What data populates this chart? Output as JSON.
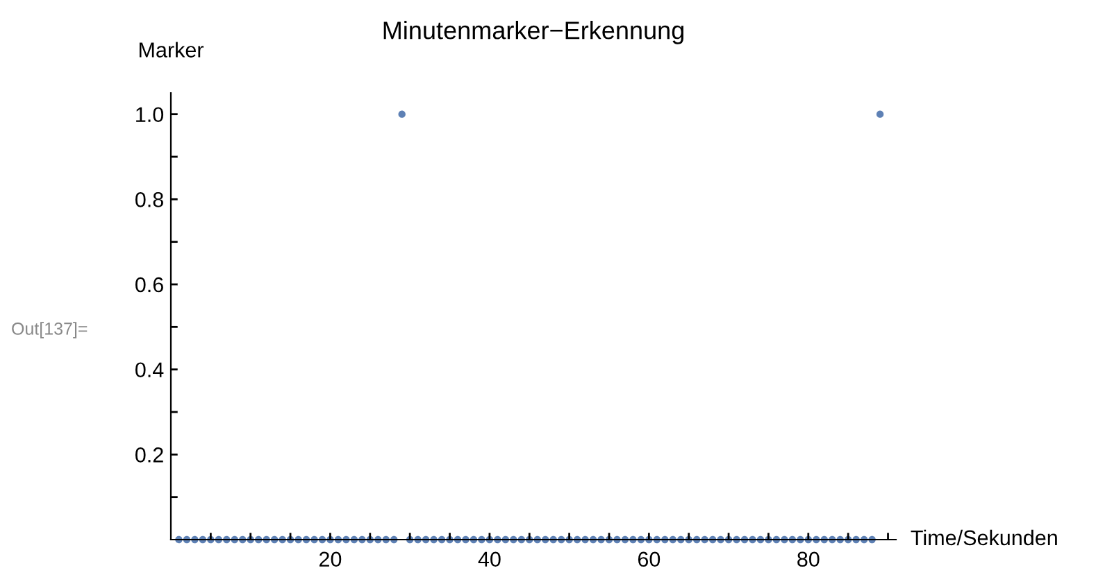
{
  "chart_data": {
    "type": "scatter",
    "title": "Minutenmarker−Erkennung",
    "xlabel": "Time/Sekunden",
    "ylabel": "Marker",
    "annotations": [
      "Out[137]="
    ],
    "x": [
      1,
      2,
      3,
      4,
      5,
      6,
      7,
      8,
      9,
      10,
      11,
      12,
      13,
      14,
      15,
      16,
      17,
      18,
      19,
      20,
      21,
      22,
      23,
      24,
      25,
      26,
      27,
      28,
      29,
      30,
      31,
      32,
      33,
      34,
      35,
      36,
      37,
      38,
      39,
      40,
      41,
      42,
      43,
      44,
      45,
      46,
      47,
      48,
      49,
      50,
      51,
      52,
      53,
      54,
      55,
      56,
      57,
      58,
      59,
      60,
      61,
      62,
      63,
      64,
      65,
      66,
      67,
      68,
      69,
      70,
      71,
      72,
      73,
      74,
      75,
      76,
      77,
      78,
      79,
      80,
      81,
      82,
      83,
      84,
      85,
      86,
      87,
      88,
      89
    ],
    "series": [
      {
        "color": "#5e81b5",
        "values": [
          0,
          0,
          0,
          0,
          0,
          0,
          0,
          0,
          0,
          0,
          0,
          0,
          0,
          0,
          0,
          0,
          0,
          0,
          0,
          0,
          0,
          0,
          0,
          0,
          0,
          0,
          0,
          0,
          1,
          0,
          0,
          0,
          0,
          0,
          0,
          0,
          0,
          0,
          0,
          0,
          0,
          0,
          0,
          0,
          0,
          0,
          0,
          0,
          0,
          0,
          0,
          0,
          0,
          0,
          0,
          0,
          0,
          0,
          0,
          0,
          0,
          0,
          0,
          0,
          0,
          0,
          0,
          0,
          0,
          0,
          0,
          0,
          0,
          0,
          0,
          0,
          0,
          0,
          0,
          0,
          0,
          0,
          0,
          0,
          0,
          0,
          0,
          0,
          1
        ]
      }
    ],
    "xlim": [
      0,
      91
    ],
    "ylim": [
      0,
      1.05
    ],
    "xticks": [
      {
        "value": 5,
        "label": null
      },
      {
        "value": 10,
        "label": null
      },
      {
        "value": 15,
        "label": null
      },
      20,
      {
        "value": 25,
        "label": null
      },
      {
        "value": 30,
        "label": null
      },
      {
        "value": 35,
        "label": null
      },
      40,
      {
        "value": 45,
        "label": null
      },
      {
        "value": 50,
        "label": null
      },
      {
        "value": 55,
        "label": null
      },
      60,
      {
        "value": 65,
        "label": null
      },
      {
        "value": 70,
        "label": null
      },
      {
        "value": 75,
        "label": null
      },
      80,
      {
        "value": 85,
        "label": null
      },
      {
        "value": 90,
        "label": null
      }
    ],
    "yticks": [
      {
        "value": 0.1,
        "label": null
      },
      0.2,
      {
        "value": 0.3,
        "label": null
      },
      0.4,
      {
        "value": 0.5,
        "label": null
      },
      0.6,
      {
        "value": 0.7,
        "label": null
      },
      0.8,
      {
        "value": 0.9,
        "label": null
      },
      {
        "value": 1,
        "label": "1.0"
      }
    ],
    "grid": false,
    "legend": false,
    "marker": "circle"
  }
}
